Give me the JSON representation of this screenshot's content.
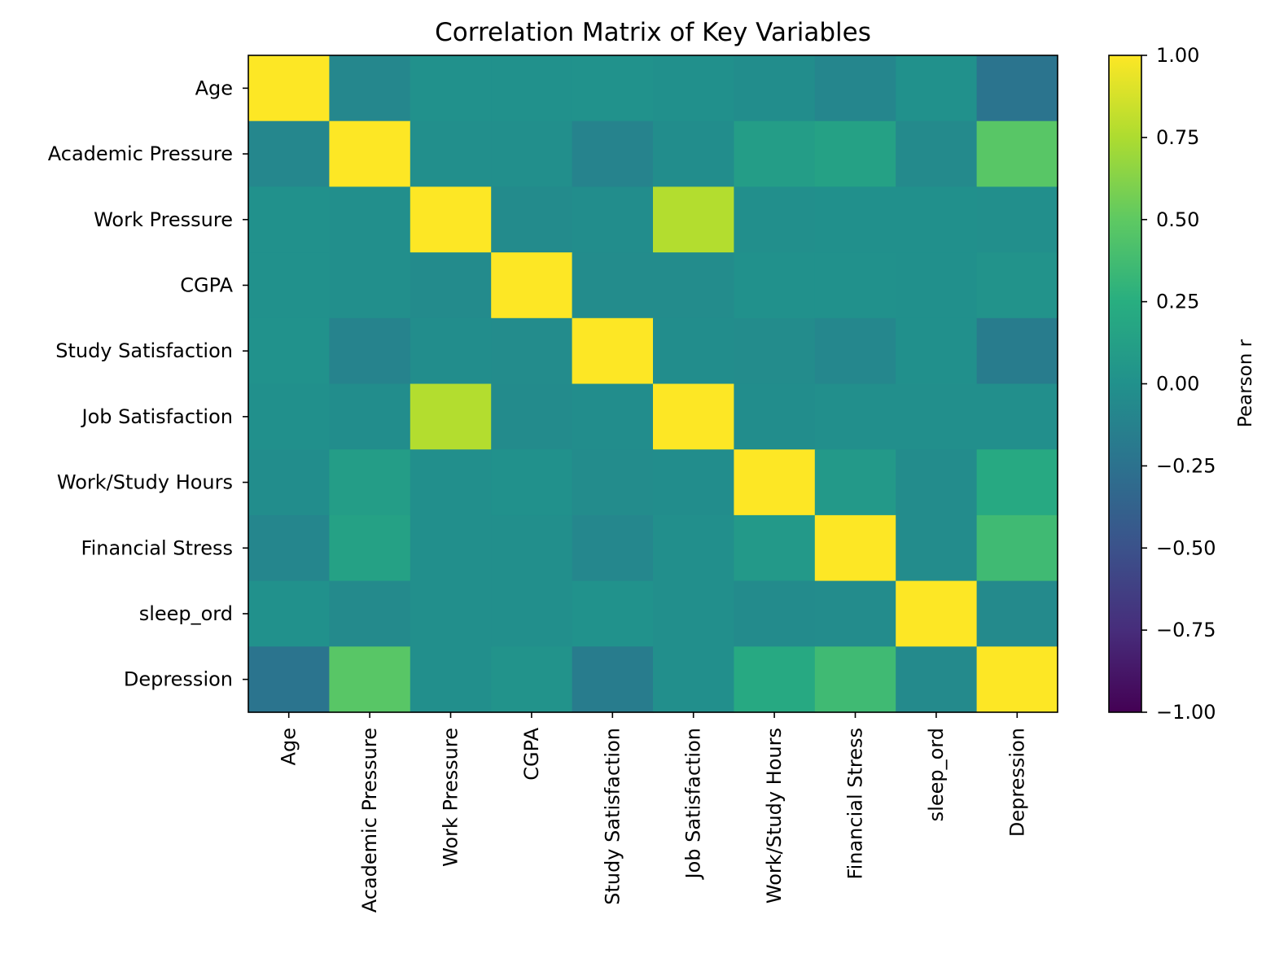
{
  "chart_data": {
    "type": "heatmap",
    "title": "Correlation Matrix of Key Variables",
    "xlabel": "",
    "ylabel": "",
    "row_labels": [
      "Age",
      "Academic Pressure",
      "Work Pressure",
      "CGPA",
      "Study Satisfaction",
      "Job Satisfaction",
      "Work/Study Hours",
      "Financial Stress",
      "sleep_ord",
      "Depression"
    ],
    "col_labels": [
      "Age",
      "Academic Pressure",
      "Work Pressure",
      "CGPA",
      "Study Satisfaction",
      "Job Satisfaction",
      "Work/Study Hours",
      "Financial Stress",
      "sleep_ord",
      "Depression"
    ],
    "values": [
      [
        1.0,
        -0.08,
        0.0,
        0.0,
        0.01,
        -0.01,
        -0.03,
        -0.09,
        0.0,
        -0.23
      ],
      [
        -0.08,
        1.0,
        -0.02,
        -0.02,
        -0.11,
        -0.03,
        0.1,
        0.14,
        -0.06,
        0.47
      ],
      [
        0.0,
        -0.02,
        1.0,
        -0.05,
        -0.03,
        0.77,
        -0.02,
        -0.01,
        -0.01,
        -0.02
      ],
      [
        0.0,
        -0.02,
        -0.05,
        1.0,
        -0.04,
        -0.04,
        0.0,
        0.0,
        -0.01,
        0.02
      ],
      [
        0.01,
        -0.11,
        -0.03,
        -0.04,
        1.0,
        -0.03,
        -0.04,
        -0.08,
        -0.01,
        -0.17
      ],
      [
        -0.01,
        -0.03,
        0.77,
        -0.05,
        -0.03,
        1.0,
        -0.03,
        -0.02,
        -0.02,
        -0.02
      ],
      [
        -0.03,
        0.1,
        -0.02,
        0.0,
        -0.04,
        -0.03,
        1.0,
        0.07,
        -0.04,
        0.21
      ],
      [
        -0.09,
        0.14,
        -0.02,
        -0.02,
        -0.08,
        -0.02,
        0.07,
        1.0,
        -0.04,
        0.36
      ],
      [
        0.0,
        -0.06,
        -0.02,
        -0.02,
        0.01,
        -0.02,
        -0.05,
        -0.04,
        1.0,
        -0.06
      ],
      [
        -0.23,
        0.47,
        -0.02,
        0.02,
        -0.17,
        -0.02,
        0.21,
        0.36,
        -0.06,
        1.0
      ]
    ],
    "colormap": "viridis",
    "vmin": -1.0,
    "vmax": 1.0,
    "colorbar": {
      "label": "Pearson r",
      "ticks": [
        1.0,
        0.75,
        0.5,
        0.25,
        0.0,
        -0.25,
        -0.5,
        -0.75,
        -1.0
      ],
      "tick_labels": [
        "1.00",
        "0.75",
        "0.50",
        "0.25",
        "0.00",
        "−0.25",
        "−0.50",
        "−0.75",
        "−1.00"
      ]
    },
    "grid": false
  }
}
